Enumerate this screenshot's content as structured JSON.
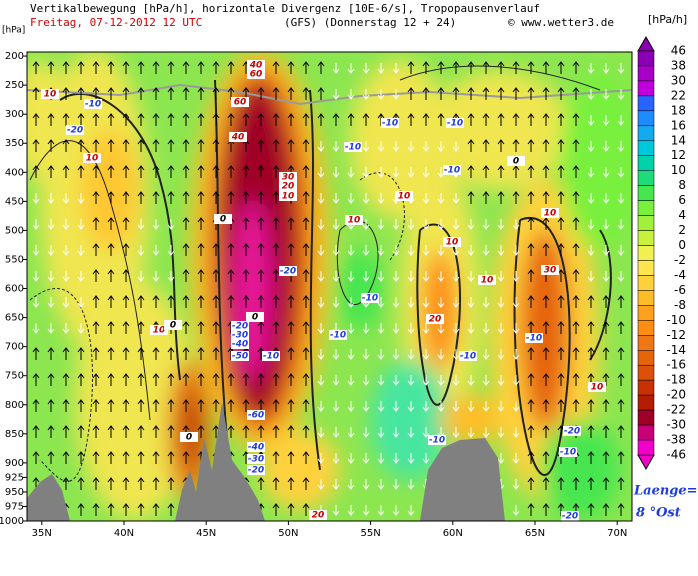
{
  "chart_data": {
    "type": "cross-section",
    "title": "Vertikalbewegung [hPa/h], horizontale Divergenz [10E-6/s], Tropopausenverlauf",
    "subtitle": "Freitag, 07-12-2012  12 UTC",
    "model": "(GFS)  (Donnerstag 12 + 24)",
    "source": "© www.wetter3.de",
    "ylabel": "[hPa]",
    "ylim": [
      1000,
      193
    ],
    "yticks": [
      200,
      250,
      300,
      350,
      400,
      450,
      500,
      550,
      600,
      650,
      700,
      750,
      800,
      850,
      900,
      925,
      950,
      975,
      1000
    ],
    "xlim": [
      34.1,
      70.9
    ],
    "xticks": [
      {
        "value": 35,
        "label": "35N"
      },
      {
        "value": 40,
        "label": "40N"
      },
      {
        "value": 45,
        "label": "45N"
      },
      {
        "value": 50,
        "label": "50N"
      },
      {
        "value": 55,
        "label": "55N"
      },
      {
        "value": 60,
        "label": "60N"
      },
      {
        "value": 65,
        "label": "65N"
      },
      {
        "value": 70,
        "label": "70N"
      }
    ],
    "colorbar": {
      "unit": "[hPa/h]",
      "levels": [
        46,
        38,
        30,
        22,
        18,
        16,
        14,
        12,
        10,
        8,
        6,
        4,
        2,
        0,
        -2,
        -4,
        -6,
        -8,
        -10,
        -12,
        -14,
        -16,
        -18,
        -20,
        -22,
        -30,
        -38,
        -46
      ],
      "colors": [
        "#8c00b4",
        "#a800c8",
        "#c000dc",
        "#2864ff",
        "#1e8cff",
        "#14aaf0",
        "#00c8dc",
        "#00d2aa",
        "#1edc78",
        "#46e650",
        "#78f03c",
        "#a0f03c",
        "#c8f03c",
        "#f0f050",
        "#ffe650",
        "#ffd23c",
        "#ffbe28",
        "#ffa01e",
        "#ff8c14",
        "#f07814",
        "#e6640a",
        "#dc500a",
        "#c83200",
        "#b41e00",
        "#a00028",
        "#c80078",
        "#f000c8"
      ]
    },
    "contour_labels": [
      10,
      -10,
      -20,
      10,
      10,
      0,
      40,
      60,
      40,
      60,
      30,
      20,
      10,
      10,
      10,
      10,
      20,
      10,
      30,
      10,
      10,
      0,
      0,
      0,
      0,
      20,
      -10,
      -10,
      -10,
      -10,
      -20,
      -10,
      -10,
      -20,
      -30,
      -40,
      -50,
      -10,
      -60,
      -40,
      -30,
      -20,
      -10,
      -10,
      -10,
      -10,
      -20,
      -20
    ],
    "longitude_label": "Laenge=",
    "longitude": "8 °Ost"
  }
}
